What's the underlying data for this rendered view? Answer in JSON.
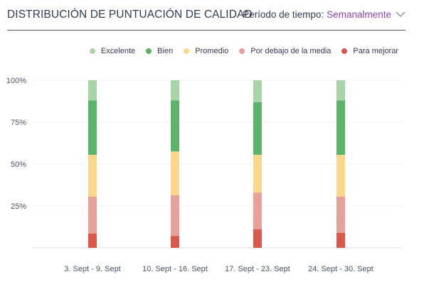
{
  "header": {
    "title": "DISTRIBUCIÓN DE PUNTUACIÓN DE CALIDAD",
    "period_label": "Período de tiempo:",
    "period_value": "Semanalmente",
    "period_color": "#8e44ad",
    "dropdown_icon": "chevron-down-icon"
  },
  "chart_data": {
    "type": "bar",
    "stacked": true,
    "categories": [
      "3. Sept - 9. Sept",
      "10. Sept - 16. Sept",
      "17. Sept - 23. Sept",
      "24. Sept - 30. Sept"
    ],
    "series": [
      {
        "name": "Para mejorar",
        "color": "#d9584a",
        "values": [
          8.5,
          7,
          11,
          9
        ]
      },
      {
        "name": "Por debajo de la media",
        "color": "#e8a19a",
        "values": [
          22,
          24.5,
          22,
          21.5
        ]
      },
      {
        "name": "Promedio",
        "color": "#f9d88c",
        "values": [
          25,
          26,
          22.5,
          25
        ]
      },
      {
        "name": "Bien",
        "color": "#5cb36a",
        "values": [
          32.5,
          30.5,
          31.5,
          32.5
        ]
      },
      {
        "name": "Excelente",
        "color": "#a8d5a8",
        "values": [
          12,
          12,
          13,
          12
        ]
      }
    ],
    "legend_order": [
      "Excelente",
      "Bien",
      "Promedio",
      "Por debajo de la media",
      "Para mejorar"
    ],
    "ylim": [
      0,
      100
    ],
    "yticks": [
      "25%",
      "50%",
      "75%",
      "100%"
    ],
    "ytick_values": [
      25,
      50,
      75,
      100
    ],
    "grid": true,
    "legend_position": "top-right"
  }
}
